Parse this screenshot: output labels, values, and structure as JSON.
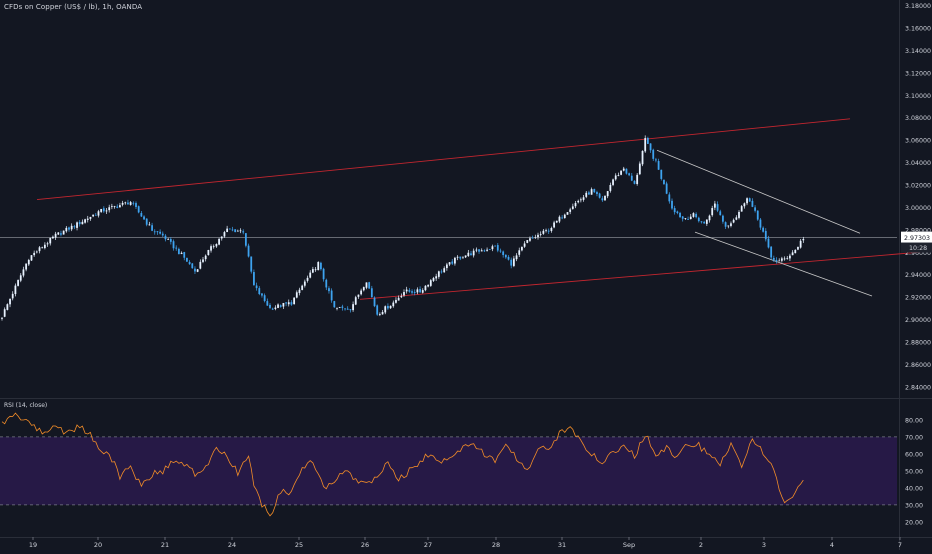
{
  "header": {
    "symbol_title": "CFDs on Copper (US$ / lb), 1h, OANDA",
    "rsi_title": "RSI (14, close)"
  },
  "colors": {
    "background": "#131722",
    "up_candle": "#e8f2ff",
    "down_candle": "#3ea3ef",
    "trend_red": "#c2262f",
    "trend_white": "#c8c8c8",
    "rsi_line": "#f28c28",
    "rsi_band": "#2a1a4c",
    "axis_text": "#d1d4dc",
    "price_label_bg": "#ffffff",
    "price_label_text": "#131722"
  },
  "price_axis": {
    "ticks": [
      "3.18000",
      "3.16000",
      "3.14000",
      "3.12000",
      "3.10000",
      "3.08000",
      "3.06000",
      "3.04000",
      "3.02000",
      "3.00000",
      "2.98000",
      "2.96000",
      "2.94000",
      "2.92000",
      "2.90000",
      "2.88000",
      "2.86000",
      "2.84000"
    ],
    "current_price": "2.97303",
    "countdown": "10:28"
  },
  "rsi_axis": {
    "ticks": [
      "80.00",
      "70.00",
      "60.00",
      "50.00",
      "40.00",
      "30.00",
      "20.00"
    ]
  },
  "time_axis": {
    "labels": [
      "19",
      "20",
      "21",
      "24",
      "25",
      "26",
      "27",
      "28",
      "31",
      "Sep",
      "2",
      "3",
      "4",
      "7"
    ]
  },
  "chart_data": [
    {
      "type": "candlestick",
      "title": "CFDs on Copper (US$ / lb), 1h, OANDA",
      "x_labels": [
        "19",
        "20",
        "21",
        "24",
        "25",
        "26",
        "27",
        "28",
        "31",
        "Sep",
        "2",
        "3",
        "4",
        "7"
      ],
      "ylim": [
        2.83,
        3.185
      ],
      "waypoints": {
        "x": [
          0,
          10,
          20,
          28,
          36,
          48,
          56,
          60,
          68,
          72,
          76,
          84,
          90,
          94,
          100,
          108,
          112,
          118,
          124,
          130,
          136,
          140,
          146,
          150,
          156,
          162,
          170,
          176,
          184,
          190,
          196,
          204,
          212,
          220,
          224,
          228,
          232,
          236,
          240,
          244,
          250,
          254,
          258,
          262,
          266,
          270,
          274,
          276,
          278,
          281,
          284,
          287,
          290,
          292,
          296,
          299
        ],
        "close": [
          2.903,
          2.955,
          2.975,
          2.985,
          2.996,
          3.005,
          2.98,
          2.975,
          2.955,
          2.943,
          2.958,
          2.98,
          2.979,
          2.93,
          2.91,
          2.915,
          2.93,
          2.95,
          2.91,
          2.91,
          2.935,
          2.905,
          2.915,
          2.925,
          2.925,
          2.94,
          2.955,
          2.96,
          2.965,
          2.95,
          2.97,
          2.98,
          3.0,
          3.015,
          3.005,
          3.025,
          3.035,
          3.02,
          3.06,
          3.04,
          3.0,
          2.99,
          2.993,
          2.985,
          3.003,
          2.983,
          2.992,
          3.0,
          3.01,
          2.995,
          2.978,
          2.955,
          2.952,
          2.954,
          2.962,
          2.973
        ]
      }
    },
    {
      "type": "line",
      "title": "RSI (14, close)",
      "ylim": [
        17,
        87
      ],
      "bands": {
        "upper": 70,
        "lower": 30
      },
      "waypoints": {
        "x": [
          0,
          5,
          10,
          15,
          20,
          24,
          28,
          32,
          36,
          40,
          44,
          48,
          52,
          56,
          60,
          64,
          68,
          72,
          76,
          80,
          84,
          88,
          92,
          94,
          96,
          98,
          100,
          102,
          104,
          108,
          112,
          116,
          120,
          124,
          128,
          132,
          136,
          140,
          144,
          148,
          152,
          156,
          160,
          164,
          168,
          172,
          176,
          180,
          184,
          188,
          192,
          196,
          200,
          204,
          208,
          212,
          216,
          220,
          224,
          228,
          232,
          236,
          240,
          244,
          248,
          252,
          256,
          260,
          264,
          268,
          272,
          276,
          280,
          284,
          288,
          290,
          292,
          296,
          299
        ],
        "rsi": [
          78,
          83,
          79,
          72,
          77,
          72,
          76,
          73,
          64,
          60,
          47,
          52,
          42,
          48,
          50,
          56,
          54,
          48,
          52,
          63,
          58,
          49,
          59,
          41,
          33,
          28,
          22,
          31,
          37,
          38,
          51,
          56,
          40,
          43,
          51,
          44,
          42,
          47,
          54,
          45,
          50,
          56,
          60,
          56,
          59,
          63,
          66,
          60,
          56,
          64,
          58,
          51,
          62,
          64,
          72,
          75,
          68,
          60,
          53,
          61,
          66,
          58,
          72,
          59,
          63,
          58,
          66,
          65,
          58,
          54,
          67,
          53,
          70,
          60,
          52,
          39,
          31,
          36,
          45
        ]
      }
    }
  ]
}
